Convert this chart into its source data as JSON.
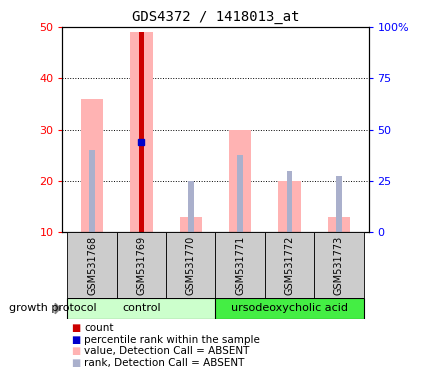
{
  "title": "GDS4372 / 1418013_at",
  "samples": [
    "GSM531768",
    "GSM531769",
    "GSM531770",
    "GSM531771",
    "GSM531772",
    "GSM531773"
  ],
  "group_labels": [
    "control",
    "ursodeoxycholic acid"
  ],
  "ylim_left": [
    10,
    50
  ],
  "ylim_right": [
    0,
    100
  ],
  "yticks_left": [
    10,
    20,
    30,
    40,
    50
  ],
  "yticks_right": [
    0,
    25,
    50,
    75,
    100
  ],
  "ytick_labels_right": [
    "0",
    "25",
    "50",
    "75",
    "100%"
  ],
  "bar_value_pink": [
    36,
    49,
    13,
    30,
    20,
    13
  ],
  "bar_rank_lightblue": [
    26,
    28,
    20,
    25,
    22,
    21
  ],
  "dot_blue_x": [
    1
  ],
  "dot_blue_y": [
    27.5
  ],
  "red_bar_x": [
    1
  ],
  "red_bar_y": [
    49
  ],
  "color_red": "#cc0000",
  "color_pink": "#ffb3b3",
  "color_blue": "#0000cc",
  "color_lightblue": "#aab0cc",
  "color_group_control": "#ccffcc",
  "color_group_urso": "#44ee44",
  "color_gray_bg": "#cccccc",
  "legend_items": [
    "count",
    "percentile rank within the sample",
    "value, Detection Call = ABSENT",
    "rank, Detection Call = ABSENT"
  ],
  "legend_colors": [
    "#cc0000",
    "#0000cc",
    "#ffb3b3",
    "#aab0cc"
  ]
}
